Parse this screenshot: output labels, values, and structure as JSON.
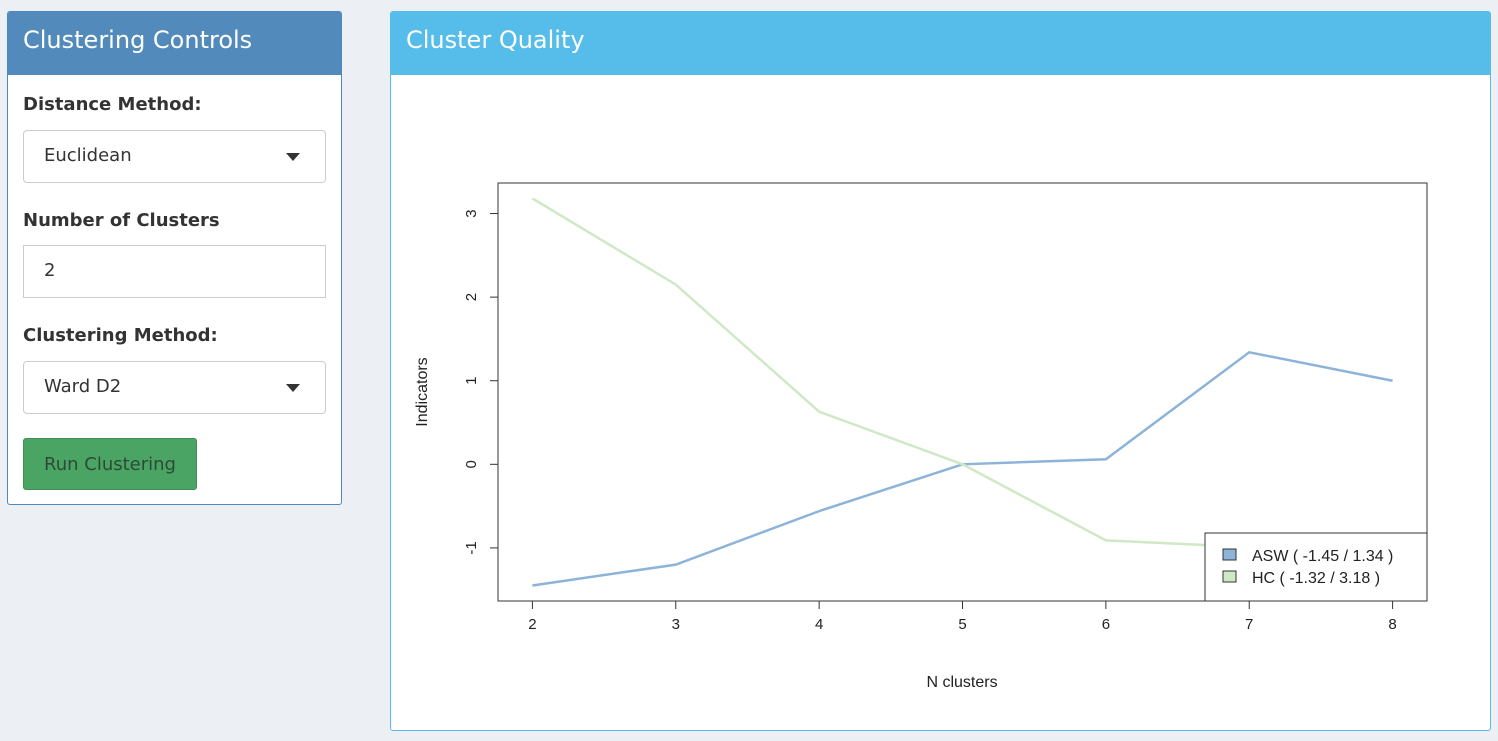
{
  "controls": {
    "title": "Clustering Controls",
    "distance_label": "Distance Method:",
    "distance_value": "Euclidean",
    "k_label": "Number of Clusters",
    "k_value": "2",
    "method_label": "Clustering Method:",
    "method_value": "Ward D2",
    "run_label": "Run Clustering"
  },
  "quality": {
    "title": "Cluster Quality"
  },
  "chart_data": {
    "type": "line",
    "title": "",
    "xlabel": "N clusters",
    "ylabel": "Indicators",
    "x": [
      2,
      3,
      4,
      5,
      6,
      7,
      8
    ],
    "xlim": [
      2,
      8
    ],
    "ylim": [
      -1.45,
      3.18
    ],
    "xticks": [
      "2",
      "3",
      "4",
      "5",
      "6",
      "7",
      "8"
    ],
    "yticks": [
      "-1",
      "0",
      "1",
      "2",
      "3"
    ],
    "series": [
      {
        "name": "ASW",
        "legend": "ASW ( -1.45 / 1.34 )",
        "color": "#8db3d9",
        "values": [
          -1.45,
          -1.2,
          -0.56,
          0,
          0.06,
          1.34,
          1.0
        ]
      },
      {
        "name": "HC",
        "legend": "HC ( -1.32 / 3.18 )",
        "color": "#cfe8c6",
        "values": [
          3.18,
          2.15,
          0.63,
          0,
          -0.91,
          -0.99,
          -1.32
        ]
      }
    ],
    "legend_position": "bottom-right",
    "grid": false
  }
}
